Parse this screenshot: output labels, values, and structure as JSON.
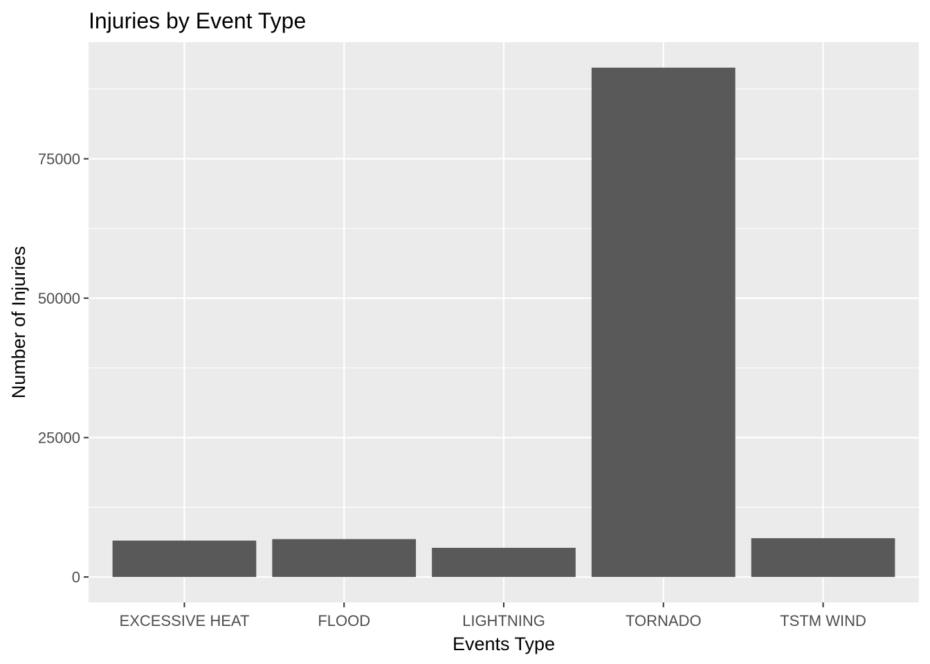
{
  "chart_data": {
    "type": "bar",
    "title": "Injuries by Event Type",
    "xlabel": "Events Type",
    "ylabel": "Number of Injuries",
    "categories": [
      "EXCESSIVE HEAT",
      "FLOOD",
      "LIGHTNING",
      "TORNADO",
      "TSTM WIND"
    ],
    "values": [
      6525,
      6789,
      5230,
      91346,
      6957
    ],
    "yticks": [
      0,
      25000,
      50000,
      75000
    ],
    "ytick_labels": [
      "0",
      "25000",
      "50000",
      "75000"
    ],
    "ylim": [
      -4567,
      95913
    ],
    "grid": true,
    "legend": "none",
    "colors": {
      "bar": "#595959",
      "panel": "#ebebeb",
      "grid": "#ffffff",
      "tick_text": "#4d4d4d",
      "axis_tick": "#333333"
    }
  }
}
